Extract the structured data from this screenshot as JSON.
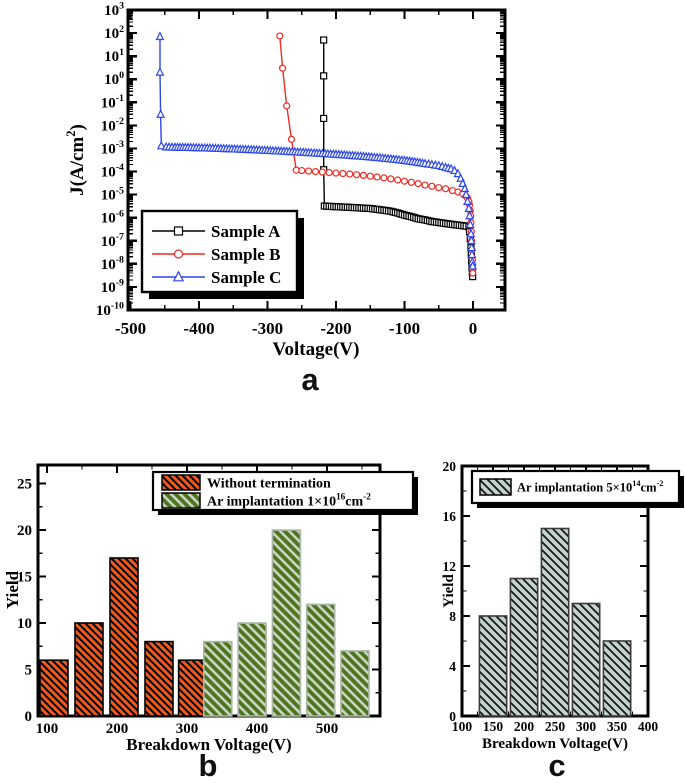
{
  "panels": {
    "a": {
      "label": "a"
    },
    "b": {
      "label": "b"
    },
    "c": {
      "label": "c"
    }
  },
  "colors": {
    "axis": "#000000",
    "sample_a": "#000000",
    "sample_b": "#ee2b24",
    "sample_c": "#2b46e8",
    "orange_bar": "#ee5a1e",
    "green_bar": "#4e7420",
    "green_bar_hatch": "#c9d4c2",
    "gray_bar": "#c3d2cc"
  },
  "chart_data": [
    {
      "id": "a",
      "type": "line",
      "xlabel": "Voltage(V)",
      "ylabel_parts": [
        [
          "t",
          "J(A/cm"
        ],
        [
          "s",
          "2"
        ],
        [
          "t",
          ")"
        ]
      ],
      "xlim": [
        -503,
        47
      ],
      "x_major_ticks": [
        -500,
        -400,
        -300,
        -200,
        -100,
        0
      ],
      "x_minor_step": 50,
      "y_scale": "log",
      "y_tick_exponents": [
        3,
        2,
        1,
        0,
        -1,
        -2,
        -3,
        -4,
        -5,
        -6,
        -7,
        -8,
        -9,
        -10
      ],
      "legend": {
        "position": "inside-bottom-left",
        "entries": [
          "Sample A",
          "Sample B",
          "Sample C"
        ]
      },
      "series": [
        {
          "name": "Sample A",
          "color": "#000000",
          "marker": "square",
          "marker_step_px": 2.2,
          "points": [
            [
              -218,
              50
            ],
            [
              -218,
              1.4
            ],
            [
              -218,
              0.02
            ],
            [
              -218,
              0.00012
            ],
            [
              -217,
              3.2e-06
            ],
            [
              -210,
              3.1e-06
            ],
            [
              -200,
              3e-06
            ],
            [
              -190,
              2.9e-06
            ],
            [
              -180,
              2.8e-06
            ],
            [
              -170,
              2.7e-06
            ],
            [
              -160,
              2.6e-06
            ],
            [
              -150,
              2.5e-06
            ],
            [
              -140,
              2.3e-06
            ],
            [
              -130,
              2.1e-06
            ],
            [
              -120,
              1.9e-06
            ],
            [
              -110,
              1.6e-06
            ],
            [
              -100,
              1.3e-06
            ],
            [
              -90,
              1.1e-06
            ],
            [
              -80,
              9e-07
            ],
            [
              -70,
              8e-07
            ],
            [
              -60,
              6.8e-07
            ],
            [
              -50,
              6.2e-07
            ],
            [
              -40,
              5.6e-07
            ],
            [
              -30,
              5.1e-07
            ],
            [
              -20,
              4.7e-07
            ],
            [
              -10,
              4.3e-07
            ],
            [
              -6,
              4e-07
            ],
            [
              -5,
              2.5e-07
            ],
            [
              -4,
              1.2e-07
            ],
            [
              -3,
              5e-08
            ],
            [
              -2.5,
              2.5e-08
            ],
            [
              -2,
              1.2e-08
            ],
            [
              -1.5,
              7e-09
            ],
            [
              -1,
              4.2e-09
            ],
            [
              -0.5,
              2.8e-09
            ]
          ]
        },
        {
          "name": "Sample B",
          "color": "#ee2b24",
          "marker": "circle",
          "marker_step_px": 3.5,
          "points": [
            [
              -282,
              75
            ],
            [
              -278,
              3
            ],
            [
              -272,
              0.07
            ],
            [
              -265,
              0.0025
            ],
            [
              -258,
              0.000115
            ],
            [
              -250,
              0.00011
            ],
            [
              -240,
              0.000105
            ],
            [
              -230,
              0.0001
            ],
            [
              -220,
              9.5e-05
            ],
            [
              -210,
              9e-05
            ],
            [
              -200,
              8.6e-05
            ],
            [
              -190,
              8.2e-05
            ],
            [
              -180,
              7.8e-05
            ],
            [
              -170,
              7.3e-05
            ],
            [
              -160,
              6.8e-05
            ],
            [
              -150,
              6.3e-05
            ],
            [
              -140,
              5.8e-05
            ],
            [
              -130,
              5.3e-05
            ],
            [
              -120,
              4.8e-05
            ],
            [
              -110,
              4.3e-05
            ],
            [
              -100,
              3.8e-05
            ],
            [
              -90,
              3.4e-05
            ],
            [
              -80,
              3e-05
            ],
            [
              -70,
              2.6e-05
            ],
            [
              -60,
              2.3e-05
            ],
            [
              -50,
              2e-05
            ],
            [
              -40,
              1.8e-05
            ],
            [
              -30,
              1.5e-05
            ],
            [
              -22,
              1.3e-05
            ],
            [
              -15,
              1.1e-05
            ],
            [
              -10,
              8.5e-06
            ],
            [
              -8,
              7e-06
            ],
            [
              -6,
              5e-06
            ],
            [
              -5,
              3.5e-06
            ],
            [
              -4,
              2e-06
            ],
            [
              -3.5,
              1.2e-06
            ],
            [
              -3,
              6e-07
            ],
            [
              -2.5,
              2.5e-07
            ],
            [
              -2,
              1e-07
            ],
            [
              -1.5,
              4e-08
            ],
            [
              -1,
              1.5e-08
            ],
            [
              -0.6,
              6e-09
            ],
            [
              -0.3,
              4e-09
            ]
          ]
        },
        {
          "name": "Sample C",
          "color": "#2b46e8",
          "marker": "triangle",
          "marker_step_px": 2.4,
          "points": [
            [
              -457,
              70
            ],
            [
              -457,
              2
            ],
            [
              -456,
              0.03
            ],
            [
              -455,
              0.0013
            ],
            [
              -448,
              0.00115
            ],
            [
              -435,
              0.00112
            ],
            [
              -420,
              0.0011
            ],
            [
              -400,
              0.00106
            ],
            [
              -380,
              0.00102
            ],
            [
              -360,
              0.00097
            ],
            [
              -340,
              0.00092
            ],
            [
              -320,
              0.00087
            ],
            [
              -300,
              0.00081
            ],
            [
              -280,
              0.00076
            ],
            [
              -260,
              0.00071
            ],
            [
              -240,
              0.00065
            ],
            [
              -220,
              0.0006
            ],
            [
              -200,
              0.00055
            ],
            [
              -180,
              0.0005
            ],
            [
              -160,
              0.00045
            ],
            [
              -140,
              0.0004
            ],
            [
              -120,
              0.00035
            ],
            [
              -100,
              0.0003
            ],
            [
              -85,
              0.00026
            ],
            [
              -70,
              0.00022
            ],
            [
              -60,
              0.0002
            ],
            [
              -50,
              0.00018
            ],
            [
              -40,
              0.00015
            ],
            [
              -32,
              0.00013
            ],
            [
              -27,
              0.00011
            ],
            [
              -22,
              8e-05
            ],
            [
              -18,
              5e-05
            ],
            [
              -15,
              3e-05
            ],
            [
              -12,
              1.8e-05
            ],
            [
              -10,
              1e-05
            ],
            [
              -8,
              5e-06
            ],
            [
              -6,
              2.5e-06
            ],
            [
              -5,
              1.2e-06
            ],
            [
              -4,
              5e-07
            ],
            [
              -3,
              2e-07
            ],
            [
              -2.5,
              1e-07
            ],
            [
              -2,
              5e-08
            ],
            [
              -1.5,
              2.5e-08
            ],
            [
              -1,
              1.2e-08
            ],
            [
              -0.5,
              8e-09
            ]
          ]
        }
      ]
    },
    {
      "id": "b",
      "type": "bar",
      "xlabel": "Breakdown Voltage(V)",
      "ylabel": "Yield",
      "xlim": [
        85,
        576
      ],
      "ylim": [
        0,
        27
      ],
      "x_major_ticks": [
        100,
        200,
        300,
        400,
        500
      ],
      "x_minor_step": 50,
      "y_major_ticks": [
        0,
        5,
        10,
        15,
        20,
        25
      ],
      "y_minor_step": 2.5,
      "bar_width_v": 40,
      "series": [
        {
          "name_parts": [
            [
              "t",
              "Without termination"
            ]
          ],
          "fill": "#ee5a1e",
          "hatch": "#000000",
          "hatch_size": 7,
          "hatch_lw": 2,
          "stroke": "#000000",
          "centers": [
            110,
            160,
            210,
            260,
            308
          ],
          "values": [
            6,
            10,
            17,
            8,
            6
          ]
        },
        {
          "name_parts": [
            [
              "t",
              "Ar implantation 1×10"
            ],
            [
              "s",
              "16"
            ],
            [
              "t",
              "cm"
            ],
            [
              "s",
              "-2"
            ]
          ],
          "fill": "#4e7420",
          "hatch": "#c9d4c2",
          "hatch_size": 9,
          "hatch_lw": 2.6,
          "stroke": "#a9b6a5",
          "centers": [
            344,
            393,
            442,
            491,
            540
          ],
          "values": [
            8,
            10,
            20,
            12,
            7
          ]
        }
      ]
    },
    {
      "id": "c",
      "type": "bar",
      "xlabel": "Breakdown Voltage(V)",
      "ylabel": "Yield",
      "xlim": [
        100,
        400
      ],
      "ylim": [
        0,
        20
      ],
      "x_major_ticks": [
        100,
        150,
        200,
        250,
        300,
        350,
        400
      ],
      "x_minor_step": 25,
      "y_major_ticks": [
        0,
        4,
        8,
        12,
        16,
        20
      ],
      "y_minor_step": 2,
      "bar_width_v": 44,
      "series": [
        {
          "name_parts": [
            [
              "t",
              "Ar implantation 5×10"
            ],
            [
              "s",
              "14"
            ],
            [
              "t",
              "cm"
            ],
            [
              "s",
              "-2"
            ]
          ],
          "fill": "#c3d2cc",
          "hatch": "#161616",
          "hatch_size": 8,
          "hatch_lw": 1.8,
          "stroke": "#3c3c3c",
          "centers": [
            150,
            200,
            250,
            300,
            350
          ],
          "values": [
            8,
            11,
            15,
            9,
            6
          ]
        }
      ]
    }
  ]
}
